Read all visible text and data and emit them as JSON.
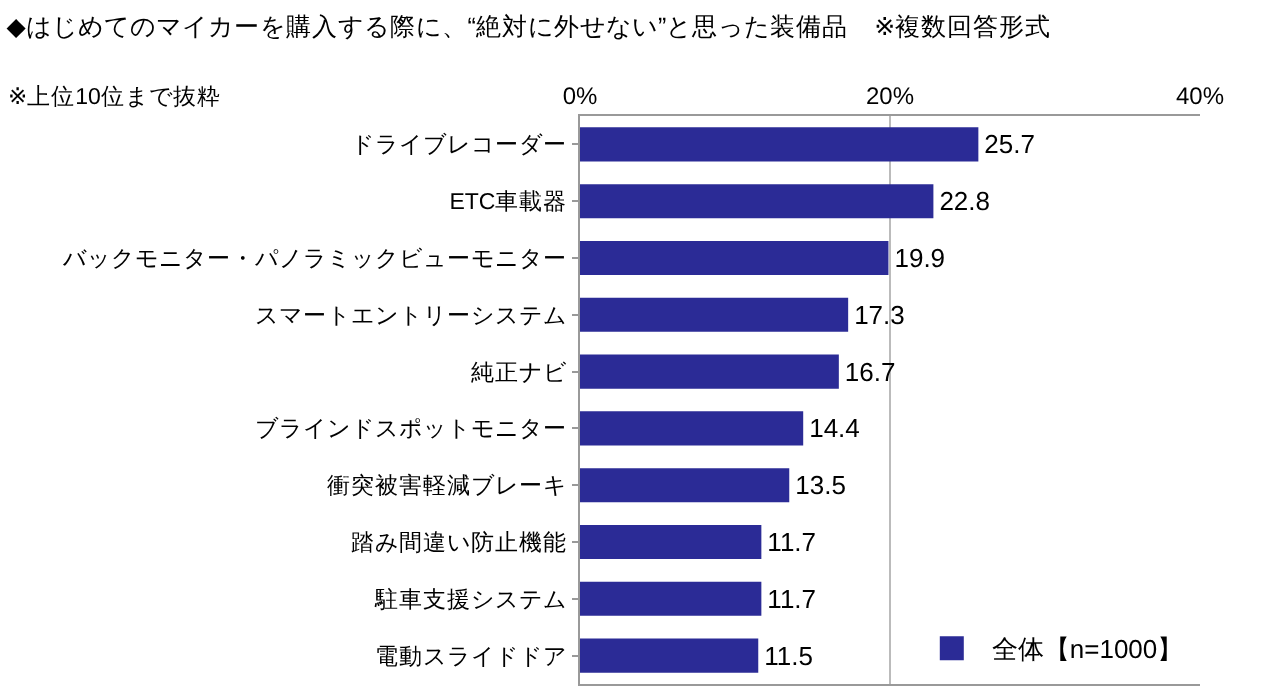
{
  "chart_data": {
    "type": "bar",
    "orientation": "horizontal",
    "title": "◆はじめてのマイカーを購入する際に、“絶対に外せない”と思った装備品　※複数回答形式",
    "subtitle": "※上位10位まで抜粋",
    "categories": [
      "ドライブレコーダー",
      "ETC車載器",
      "バックモニター・パノラミックビューモニター",
      "スマートエントリーシステム",
      "純正ナビ",
      "ブラインドスポットモニター",
      "衝突被害軽減ブレーキ",
      "踏み間違い防止機能",
      "駐車支援システム",
      "電動スライドドア"
    ],
    "series": [
      {
        "name": "全体【n=1000】",
        "color": "#2b2b96",
        "values": [
          25.7,
          22.8,
          19.9,
          17.3,
          16.7,
          14.4,
          13.5,
          11.7,
          11.7,
          11.5
        ]
      }
    ],
    "xlim": [
      0,
      40
    ],
    "xticks": [
      {
        "value": 0,
        "label": "0%"
      },
      {
        "value": 20,
        "label": "20%"
      },
      {
        "value": 40,
        "label": "40%"
      }
    ],
    "grid": "x",
    "legend": "bottom right",
    "data_labels": true
  }
}
